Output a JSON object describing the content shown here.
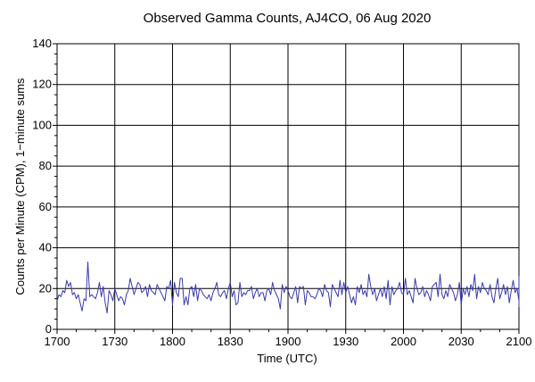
{
  "chart_data": {
    "type": "line",
    "title": "Observed Gamma Counts, AJ4CO, 06 Aug 2020",
    "xlabel": "Time (UTC)",
    "ylabel": "Counts per Minute (CPM), 1−minute sums",
    "xlim": [
      "1700",
      "2100"
    ],
    "ylim": [
      0,
      140
    ],
    "x_ticks": [
      "1700",
      "1730",
      "1800",
      "1830",
      "1900",
      "1930",
      "2000",
      "2030",
      "2100"
    ],
    "y_ticks": [
      0,
      20,
      40,
      60,
      80,
      100,
      120,
      140
    ],
    "grid": true,
    "legend": "none",
    "colors": {
      "series": "#3a3aa8",
      "grid": "#000000",
      "axis": "#000000"
    },
    "series": [
      {
        "x_start": "1700",
        "x_step_minutes": 1,
        "values": [
          14,
          17,
          16,
          19,
          18,
          24,
          21,
          23,
          17,
          18,
          15,
          17,
          13,
          9,
          15,
          14,
          33,
          16,
          17,
          16,
          15,
          18,
          23,
          16,
          21,
          13,
          8,
          19,
          17,
          14,
          20,
          17,
          14,
          16,
          15,
          12,
          17,
          19,
          25,
          21,
          17,
          20,
          23,
          22,
          18,
          19,
          21,
          16,
          22,
          19,
          18,
          17,
          22,
          20,
          18,
          16,
          14,
          21,
          20,
          24,
          12,
          23,
          18,
          16,
          25,
          25,
          12,
          16,
          12,
          20,
          21,
          16,
          22,
          14,
          20,
          19,
          17,
          16,
          15,
          17,
          14,
          18,
          20,
          23,
          17,
          16,
          18,
          19,
          15,
          20,
          23,
          16,
          19,
          12,
          13,
          23,
          16,
          18,
          17,
          19,
          19,
          21,
          15,
          18,
          20,
          16,
          18,
          18,
          14,
          19,
          20,
          17,
          23,
          19,
          17,
          15,
          10,
          22,
          18,
          21,
          19,
          16,
          15,
          18,
          21,
          13,
          21,
          20,
          21,
          12,
          19,
          18,
          16,
          16,
          15,
          17,
          20,
          19,
          16,
          22,
          19,
          18,
          11,
          22,
          20,
          18,
          16,
          24,
          17,
          23,
          18,
          21,
          17,
          13,
          16,
          12,
          21,
          18,
          22,
          17,
          19,
          16,
          27,
          21,
          17,
          20,
          14,
          17,
          20,
          16,
          21,
          15,
          24,
          12,
          21,
          17,
          19,
          20,
          23,
          18,
          17,
          25,
          17,
          19,
          16,
          13,
          25,
          20,
          17,
          18,
          21,
          16,
          19,
          17,
          14,
          21,
          22,
          23,
          16,
          27,
          17,
          15,
          19,
          16,
          22,
          20,
          18,
          14,
          17,
          23,
          12,
          20,
          17,
          21,
          16,
          22,
          19,
          27,
          15,
          21,
          18,
          23,
          20,
          19,
          17,
          22,
          16,
          13,
          20,
          25,
          15,
          18,
          22,
          17,
          21,
          13,
          19,
          24,
          18,
          20,
          14,
          22,
          16,
          21,
          25,
          13,
          18,
          11,
          26,
          17,
          20,
          23,
          19,
          22,
          15,
          24,
          17,
          13,
          20,
          22,
          18,
          21,
          16,
          19,
          23,
          17,
          20,
          14,
          22,
          18,
          21,
          16,
          25,
          19,
          12,
          20,
          23,
          17,
          15,
          22,
          19,
          21,
          16,
          26,
          18,
          14,
          20,
          23,
          17,
          22,
          15,
          19,
          24,
          18,
          21,
          13,
          20,
          17,
          22,
          19,
          16,
          23,
          18,
          14,
          21,
          20,
          17,
          25,
          22,
          19,
          16,
          13,
          24,
          18,
          21,
          20,
          15,
          22,
          17,
          19,
          23,
          21,
          16,
          14,
          20,
          18,
          22,
          19,
          17,
          24,
          16,
          21,
          13,
          20,
          23,
          18,
          19,
          15,
          22,
          17,
          21,
          18,
          20,
          16,
          24,
          12,
          19,
          22,
          17,
          21,
          18,
          15,
          20,
          23,
          19,
          16,
          21,
          14,
          22,
          18,
          20,
          17,
          19,
          24,
          16,
          21,
          18,
          13,
          22,
          20,
          17,
          19,
          23,
          15,
          21,
          18,
          16,
          20,
          22,
          19,
          17,
          14,
          21,
          23,
          18,
          20,
          16,
          22,
          19,
          15,
          21,
          17,
          20,
          18,
          23,
          16,
          19,
          22,
          14,
          20,
          21,
          17,
          18,
          22,
          19,
          16,
          20,
          23,
          15,
          21,
          18,
          17,
          20,
          22,
          16,
          19,
          21,
          18,
          20,
          17,
          15,
          22,
          19,
          21,
          16,
          20,
          18,
          23,
          17,
          19,
          22,
          16,
          20,
          18,
          21,
          17,
          19,
          23,
          15,
          20,
          18,
          22,
          16,
          21,
          19,
          17,
          20,
          14
        ]
      }
    ]
  }
}
